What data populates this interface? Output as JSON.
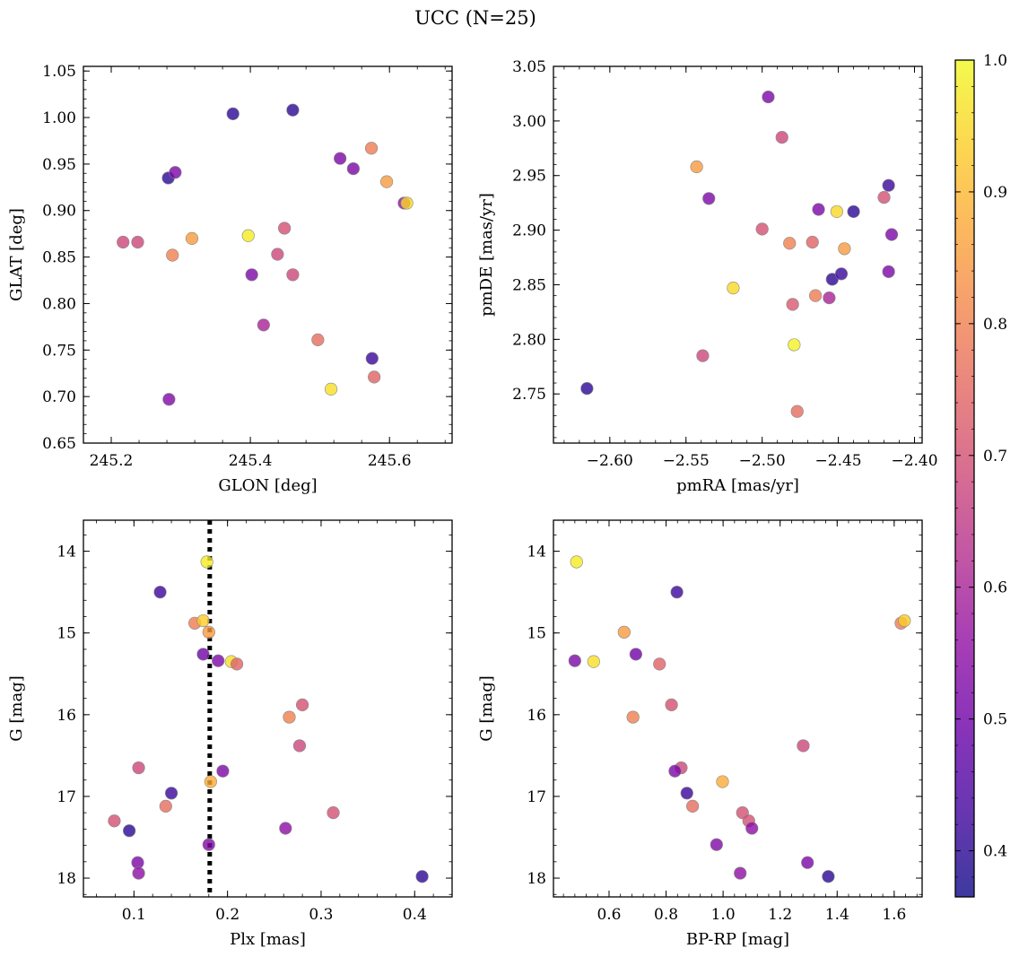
{
  "figure": {
    "title": "UCC (N=25)"
  },
  "colorbar": {
    "range": [
      0.365,
      1.0
    ],
    "ticks": [
      0.4,
      0.5,
      0.6,
      0.7,
      0.8,
      0.9,
      1.0
    ],
    "tick_labels": [
      "0.4",
      "0.5",
      "0.6",
      "0.7",
      "0.8",
      "0.9",
      "1.0"
    ],
    "colormap": "plasma"
  },
  "chart_data": [
    {
      "type": "scatter",
      "id": "glon-glat",
      "xlabel": "GLON [deg]",
      "ylabel": "GLAT [deg]",
      "xlim": [
        245.16,
        245.69
      ],
      "ylim": [
        0.65,
        1.055
      ],
      "xticks": [
        245.2,
        245.4,
        245.6
      ],
      "xtick_labels": [
        "245.2",
        "245.4",
        "245.6"
      ],
      "yticks": [
        0.65,
        0.7,
        0.75,
        0.8,
        0.85,
        0.9,
        0.95,
        1.0,
        1.05
      ],
      "ytick_labels": [
        "0.65",
        "0.70",
        "0.75",
        "0.80",
        "0.85",
        "0.90",
        "0.95",
        "1.00",
        "1.05"
      ],
      "y_inverted": false,
      "points": [
        {
          "x": 245.375,
          "y": 1.004,
          "c": 0.4
        },
        {
          "x": 245.461,
          "y": 1.008,
          "c": 0.4
        },
        {
          "x": 245.282,
          "y": 0.935,
          "c": 0.4
        },
        {
          "x": 245.292,
          "y": 0.941,
          "c": 0.52
        },
        {
          "x": 245.529,
          "y": 0.956,
          "c": 0.52
        },
        {
          "x": 245.548,
          "y": 0.945,
          "c": 0.52
        },
        {
          "x": 245.574,
          "y": 0.967,
          "c": 0.79
        },
        {
          "x": 245.596,
          "y": 0.931,
          "c": 0.85
        },
        {
          "x": 245.621,
          "y": 0.908,
          "c": 0.55
        },
        {
          "x": 245.625,
          "y": 0.908,
          "c": 0.95
        },
        {
          "x": 245.217,
          "y": 0.866,
          "c": 0.68
        },
        {
          "x": 245.238,
          "y": 0.866,
          "c": 0.68
        },
        {
          "x": 245.288,
          "y": 0.852,
          "c": 0.8
        },
        {
          "x": 245.316,
          "y": 0.87,
          "c": 0.85
        },
        {
          "x": 245.397,
          "y": 0.873,
          "c": 0.98
        },
        {
          "x": 245.449,
          "y": 0.881,
          "c": 0.7
        },
        {
          "x": 245.439,
          "y": 0.853,
          "c": 0.68
        },
        {
          "x": 245.402,
          "y": 0.831,
          "c": 0.52
        },
        {
          "x": 245.461,
          "y": 0.831,
          "c": 0.68
        },
        {
          "x": 245.419,
          "y": 0.777,
          "c": 0.6
        },
        {
          "x": 245.497,
          "y": 0.761,
          "c": 0.76
        },
        {
          "x": 245.575,
          "y": 0.741,
          "c": 0.42
        },
        {
          "x": 245.578,
          "y": 0.721,
          "c": 0.74
        },
        {
          "x": 245.516,
          "y": 0.708,
          "c": 0.96
        },
        {
          "x": 245.283,
          "y": 0.697,
          "c": 0.53
        }
      ]
    },
    {
      "type": "scatter",
      "id": "pmra-pmde",
      "xlabel": "pmRA [mas/yr]",
      "ylabel": "pmDE [mas/yr]",
      "xlim": [
        -2.637,
        -2.395
      ],
      "ylim": [
        2.705,
        3.05
      ],
      "xticks": [
        -2.6,
        -2.55,
        -2.5,
        -2.45,
        -2.4
      ],
      "xtick_labels": [
        "−2.60",
        "−2.55",
        "−2.50",
        "−2.45",
        "−2.40"
      ],
      "yticks": [
        2.75,
        2.8,
        2.85,
        2.9,
        2.95,
        3.0,
        3.05
      ],
      "ytick_labels": [
        "2.75",
        "2.80",
        "2.85",
        "2.90",
        "2.95",
        "3.00",
        "3.05"
      ],
      "y_inverted": false,
      "points": [
        {
          "x": -2.496,
          "y": 3.022,
          "c": 0.52
        },
        {
          "x": -2.487,
          "y": 2.985,
          "c": 0.68
        },
        {
          "x": -2.543,
          "y": 2.958,
          "c": 0.85
        },
        {
          "x": -2.535,
          "y": 2.929,
          "c": 0.52
        },
        {
          "x": -2.463,
          "y": 2.919,
          "c": 0.52
        },
        {
          "x": -2.451,
          "y": 2.917,
          "c": 0.95
        },
        {
          "x": -2.44,
          "y": 2.917,
          "c": 0.4
        },
        {
          "x": -2.417,
          "y": 2.941,
          "c": 0.42
        },
        {
          "x": -2.42,
          "y": 2.93,
          "c": 0.7
        },
        {
          "x": -2.5,
          "y": 2.901,
          "c": 0.7
        },
        {
          "x": -2.482,
          "y": 2.888,
          "c": 0.8
        },
        {
          "x": -2.467,
          "y": 2.889,
          "c": 0.74
        },
        {
          "x": -2.446,
          "y": 2.883,
          "c": 0.85
        },
        {
          "x": -2.415,
          "y": 2.896,
          "c": 0.52
        },
        {
          "x": -2.519,
          "y": 2.847,
          "c": 0.95
        },
        {
          "x": -2.454,
          "y": 2.855,
          "c": 0.4
        },
        {
          "x": -2.448,
          "y": 2.86,
          "c": 0.42
        },
        {
          "x": -2.417,
          "y": 2.862,
          "c": 0.52
        },
        {
          "x": -2.465,
          "y": 2.84,
          "c": 0.79
        },
        {
          "x": -2.456,
          "y": 2.838,
          "c": 0.6
        },
        {
          "x": -2.48,
          "y": 2.832,
          "c": 0.72
        },
        {
          "x": -2.479,
          "y": 2.795,
          "c": 0.99
        },
        {
          "x": -2.539,
          "y": 2.785,
          "c": 0.68
        },
        {
          "x": -2.615,
          "y": 2.755,
          "c": 0.4
        },
        {
          "x": -2.477,
          "y": 2.734,
          "c": 0.76
        }
      ]
    },
    {
      "type": "scatter",
      "id": "plx-g",
      "xlabel": "Plx [mas]",
      "ylabel": "G [mag]",
      "xlim": [
        0.046,
        0.44
      ],
      "ylim": [
        13.62,
        18.23
      ],
      "xticks": [
        0.1,
        0.2,
        0.3,
        0.4
      ],
      "xtick_labels": [
        "0.1",
        "0.2",
        "0.3",
        "0.4"
      ],
      "yticks": [
        14,
        15,
        16,
        17,
        18
      ],
      "ytick_labels": [
        "14",
        "15",
        "16",
        "17",
        "18"
      ],
      "y_inverted": true,
      "vline": 0.181,
      "points": [
        {
          "x": 0.178,
          "y": 14.13,
          "c": 0.98
        },
        {
          "x": 0.128,
          "y": 14.5,
          "c": 0.42
        },
        {
          "x": 0.165,
          "y": 14.88,
          "c": 0.79
        },
        {
          "x": 0.174,
          "y": 14.85,
          "c": 0.93
        },
        {
          "x": 0.18,
          "y": 14.99,
          "c": 0.85
        },
        {
          "x": 0.174,
          "y": 15.26,
          "c": 0.5
        },
        {
          "x": 0.19,
          "y": 15.34,
          "c": 0.52
        },
        {
          "x": 0.204,
          "y": 15.35,
          "c": 0.96
        },
        {
          "x": 0.21,
          "y": 15.38,
          "c": 0.74
        },
        {
          "x": 0.266,
          "y": 16.03,
          "c": 0.8
        },
        {
          "x": 0.28,
          "y": 15.88,
          "c": 0.7
        },
        {
          "x": 0.277,
          "y": 16.38,
          "c": 0.68
        },
        {
          "x": 0.105,
          "y": 16.65,
          "c": 0.68
        },
        {
          "x": 0.195,
          "y": 16.69,
          "c": 0.52
        },
        {
          "x": 0.182,
          "y": 16.82,
          "c": 0.88
        },
        {
          "x": 0.14,
          "y": 16.96,
          "c": 0.42
        },
        {
          "x": 0.134,
          "y": 17.12,
          "c": 0.76
        },
        {
          "x": 0.313,
          "y": 17.2,
          "c": 0.7
        },
        {
          "x": 0.079,
          "y": 17.3,
          "c": 0.7
        },
        {
          "x": 0.095,
          "y": 17.42,
          "c": 0.4
        },
        {
          "x": 0.262,
          "y": 17.39,
          "c": 0.55
        },
        {
          "x": 0.18,
          "y": 17.59,
          "c": 0.53
        },
        {
          "x": 0.104,
          "y": 17.81,
          "c": 0.52
        },
        {
          "x": 0.105,
          "y": 17.94,
          "c": 0.55
        },
        {
          "x": 0.408,
          "y": 17.98,
          "c": 0.4
        }
      ]
    },
    {
      "type": "scatter",
      "id": "bprp-g",
      "xlabel": "BP-RP [mag]",
      "ylabel": "G [mag]",
      "xlim": [
        0.405,
        1.698
      ],
      "ylim": [
        13.62,
        18.23
      ],
      "xticks": [
        0.6,
        0.8,
        1.0,
        1.2,
        1.4,
        1.6
      ],
      "xtick_labels": [
        "0.6",
        "0.8",
        "1.0",
        "1.2",
        "1.4",
        "1.6"
      ],
      "yticks": [
        14,
        15,
        16,
        17,
        18
      ],
      "ytick_labels": [
        "14",
        "15",
        "16",
        "17",
        "18"
      ],
      "y_inverted": true,
      "points": [
        {
          "x": 0.486,
          "y": 14.13,
          "c": 0.98
        },
        {
          "x": 0.838,
          "y": 14.5,
          "c": 0.42
        },
        {
          "x": 1.624,
          "y": 14.88,
          "c": 0.79
        },
        {
          "x": 1.636,
          "y": 14.85,
          "c": 0.93
        },
        {
          "x": 0.653,
          "y": 14.99,
          "c": 0.85
        },
        {
          "x": 0.48,
          "y": 15.34,
          "c": 0.52
        },
        {
          "x": 0.546,
          "y": 15.35,
          "c": 0.96
        },
        {
          "x": 0.694,
          "y": 15.26,
          "c": 0.5
        },
        {
          "x": 0.777,
          "y": 15.38,
          "c": 0.74
        },
        {
          "x": 0.684,
          "y": 16.03,
          "c": 0.8
        },
        {
          "x": 0.819,
          "y": 15.88,
          "c": 0.7
        },
        {
          "x": 1.281,
          "y": 16.38,
          "c": 0.68
        },
        {
          "x": 0.853,
          "y": 16.65,
          "c": 0.68
        },
        {
          "x": 0.831,
          "y": 16.69,
          "c": 0.52
        },
        {
          "x": 0.998,
          "y": 16.82,
          "c": 0.88
        },
        {
          "x": 0.873,
          "y": 16.96,
          "c": 0.42
        },
        {
          "x": 0.893,
          "y": 17.12,
          "c": 0.76
        },
        {
          "x": 1.068,
          "y": 17.2,
          "c": 0.7
        },
        {
          "x": 1.09,
          "y": 17.3,
          "c": 0.7
        },
        {
          "x": 1.101,
          "y": 17.39,
          "c": 0.55
        },
        {
          "x": 0.977,
          "y": 17.59,
          "c": 0.53
        },
        {
          "x": 1.296,
          "y": 17.81,
          "c": 0.52
        },
        {
          "x": 1.06,
          "y": 17.94,
          "c": 0.55
        },
        {
          "x": 1.369,
          "y": 17.98,
          "c": 0.4
        }
      ]
    }
  ]
}
